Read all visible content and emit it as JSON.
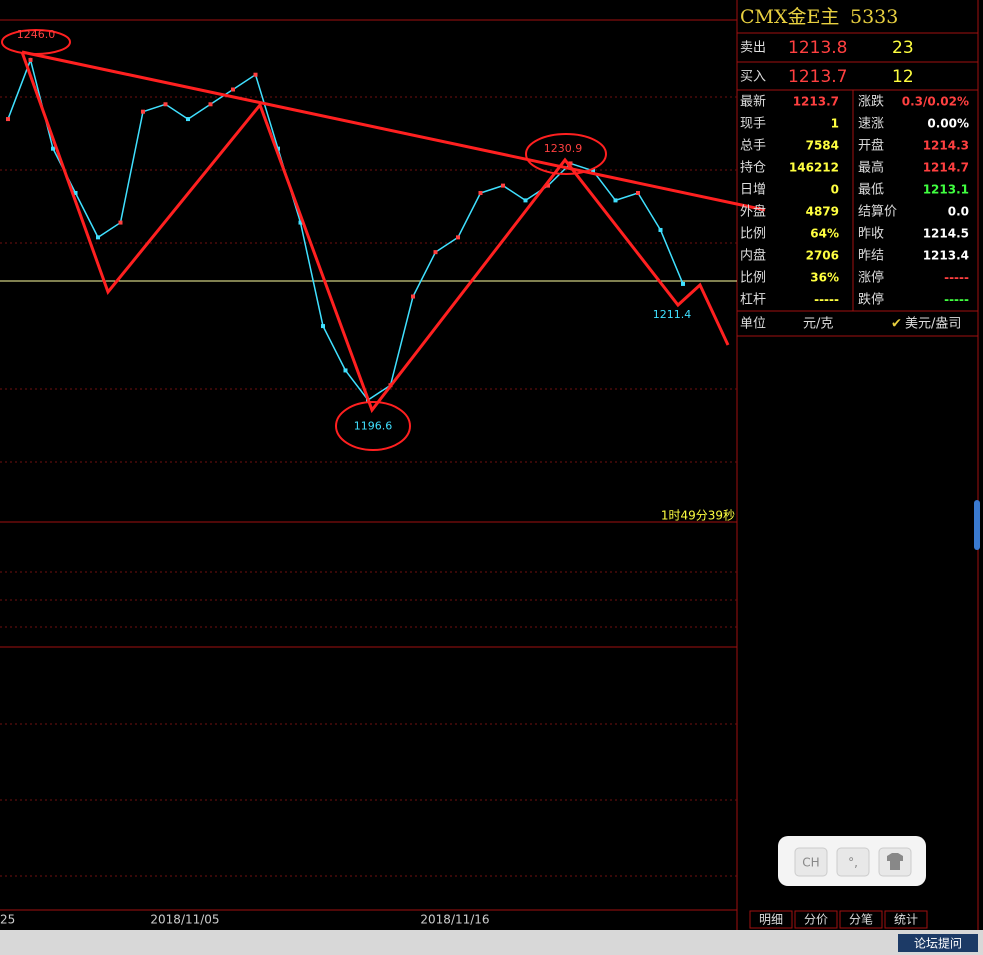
{
  "header": {
    "symbol": "CMX金E主",
    "code": "5333"
  },
  "order_book": [
    {
      "label": "卖出",
      "price": "1213.8",
      "volume": "23"
    },
    {
      "label": "买入",
      "price": "1213.7",
      "volume": "12"
    }
  ],
  "quote_rows": [
    [
      {
        "label": "最新",
        "value": "1213.7",
        "color": "#ff4040"
      },
      {
        "label": "涨跌",
        "value": "0.3/0.02%",
        "color": "#ff4040"
      }
    ],
    [
      {
        "label": "现手",
        "value": "1",
        "color": "#ffff40"
      },
      {
        "label": "速涨",
        "value": "0.00%",
        "color": "#ffffff"
      }
    ],
    [
      {
        "label": "总手",
        "value": "7584",
        "color": "#ffff40"
      },
      {
        "label": "开盘",
        "value": "1214.3",
        "color": "#ff4040"
      }
    ],
    [
      {
        "label": "持仓",
        "value": "146212",
        "color": "#ffff40"
      },
      {
        "label": "最高",
        "value": "1214.7",
        "color": "#ff4040"
      }
    ],
    [
      {
        "label": "日增",
        "value": "0",
        "color": "#ffff40"
      },
      {
        "label": "最低",
        "value": "1213.1",
        "color": "#40ff40"
      }
    ],
    [
      {
        "label": "外盘",
        "value": "4879",
        "color": "#ffff40"
      },
      {
        "label": "结算价",
        "value": "0.0",
        "color": "#ffffff"
      }
    ],
    [
      {
        "label": "比例",
        "value": "64%",
        "color": "#ffff40"
      },
      {
        "label": "昨收",
        "value": "1214.5",
        "color": "#ffffff"
      }
    ],
    [
      {
        "label": "内盘",
        "value": "2706",
        "color": "#ffff40"
      },
      {
        "label": "昨结",
        "value": "1213.4",
        "color": "#ffffff"
      }
    ],
    [
      {
        "label": "比例",
        "value": "36%",
        "color": "#ffff40"
      },
      {
        "label": "涨停",
        "value": "-----",
        "color": "#ff4040"
      }
    ],
    [
      {
        "label": "杠杆",
        "value": "-----",
        "color": "#ffff40"
      },
      {
        "label": "跌停",
        "value": "-----",
        "color": "#40ff40"
      }
    ]
  ],
  "unit": {
    "label": "单位",
    "metric": "元/克",
    "imperial": "美元/盎司"
  },
  "price_chart": {
    "ylim": [
      1181.5,
      1249.4
    ],
    "closes": [
      1236,
      1244,
      1232,
      1226,
      1220,
      1222,
      1237,
      1238,
      1236,
      1238,
      1240,
      1242,
      1232,
      1222,
      1208,
      1202,
      1198,
      1200,
      1212,
      1218,
      1220,
      1226,
      1227,
      1225,
      1227,
      1230,
      1229,
      1225,
      1226,
      1221,
      1213.7
    ],
    "annotations": [
      {
        "label": "1246.0",
        "value": 1246
      },
      {
        "label": "1196.6",
        "value": 1196.6
      },
      {
        "label": "1230.9",
        "value": 1230.9
      },
      {
        "label": "1211.4",
        "value": 1211.4
      }
    ],
    "timer": "1时49分39秒",
    "dates": [
      "25",
      "2018/11/05",
      "2018/11/16"
    ]
  },
  "tabs": [
    "明细",
    "分价",
    "分笔",
    "统计"
  ],
  "toolbar": [
    "CH",
    "°,"
  ],
  "footer": "论坛提问"
}
